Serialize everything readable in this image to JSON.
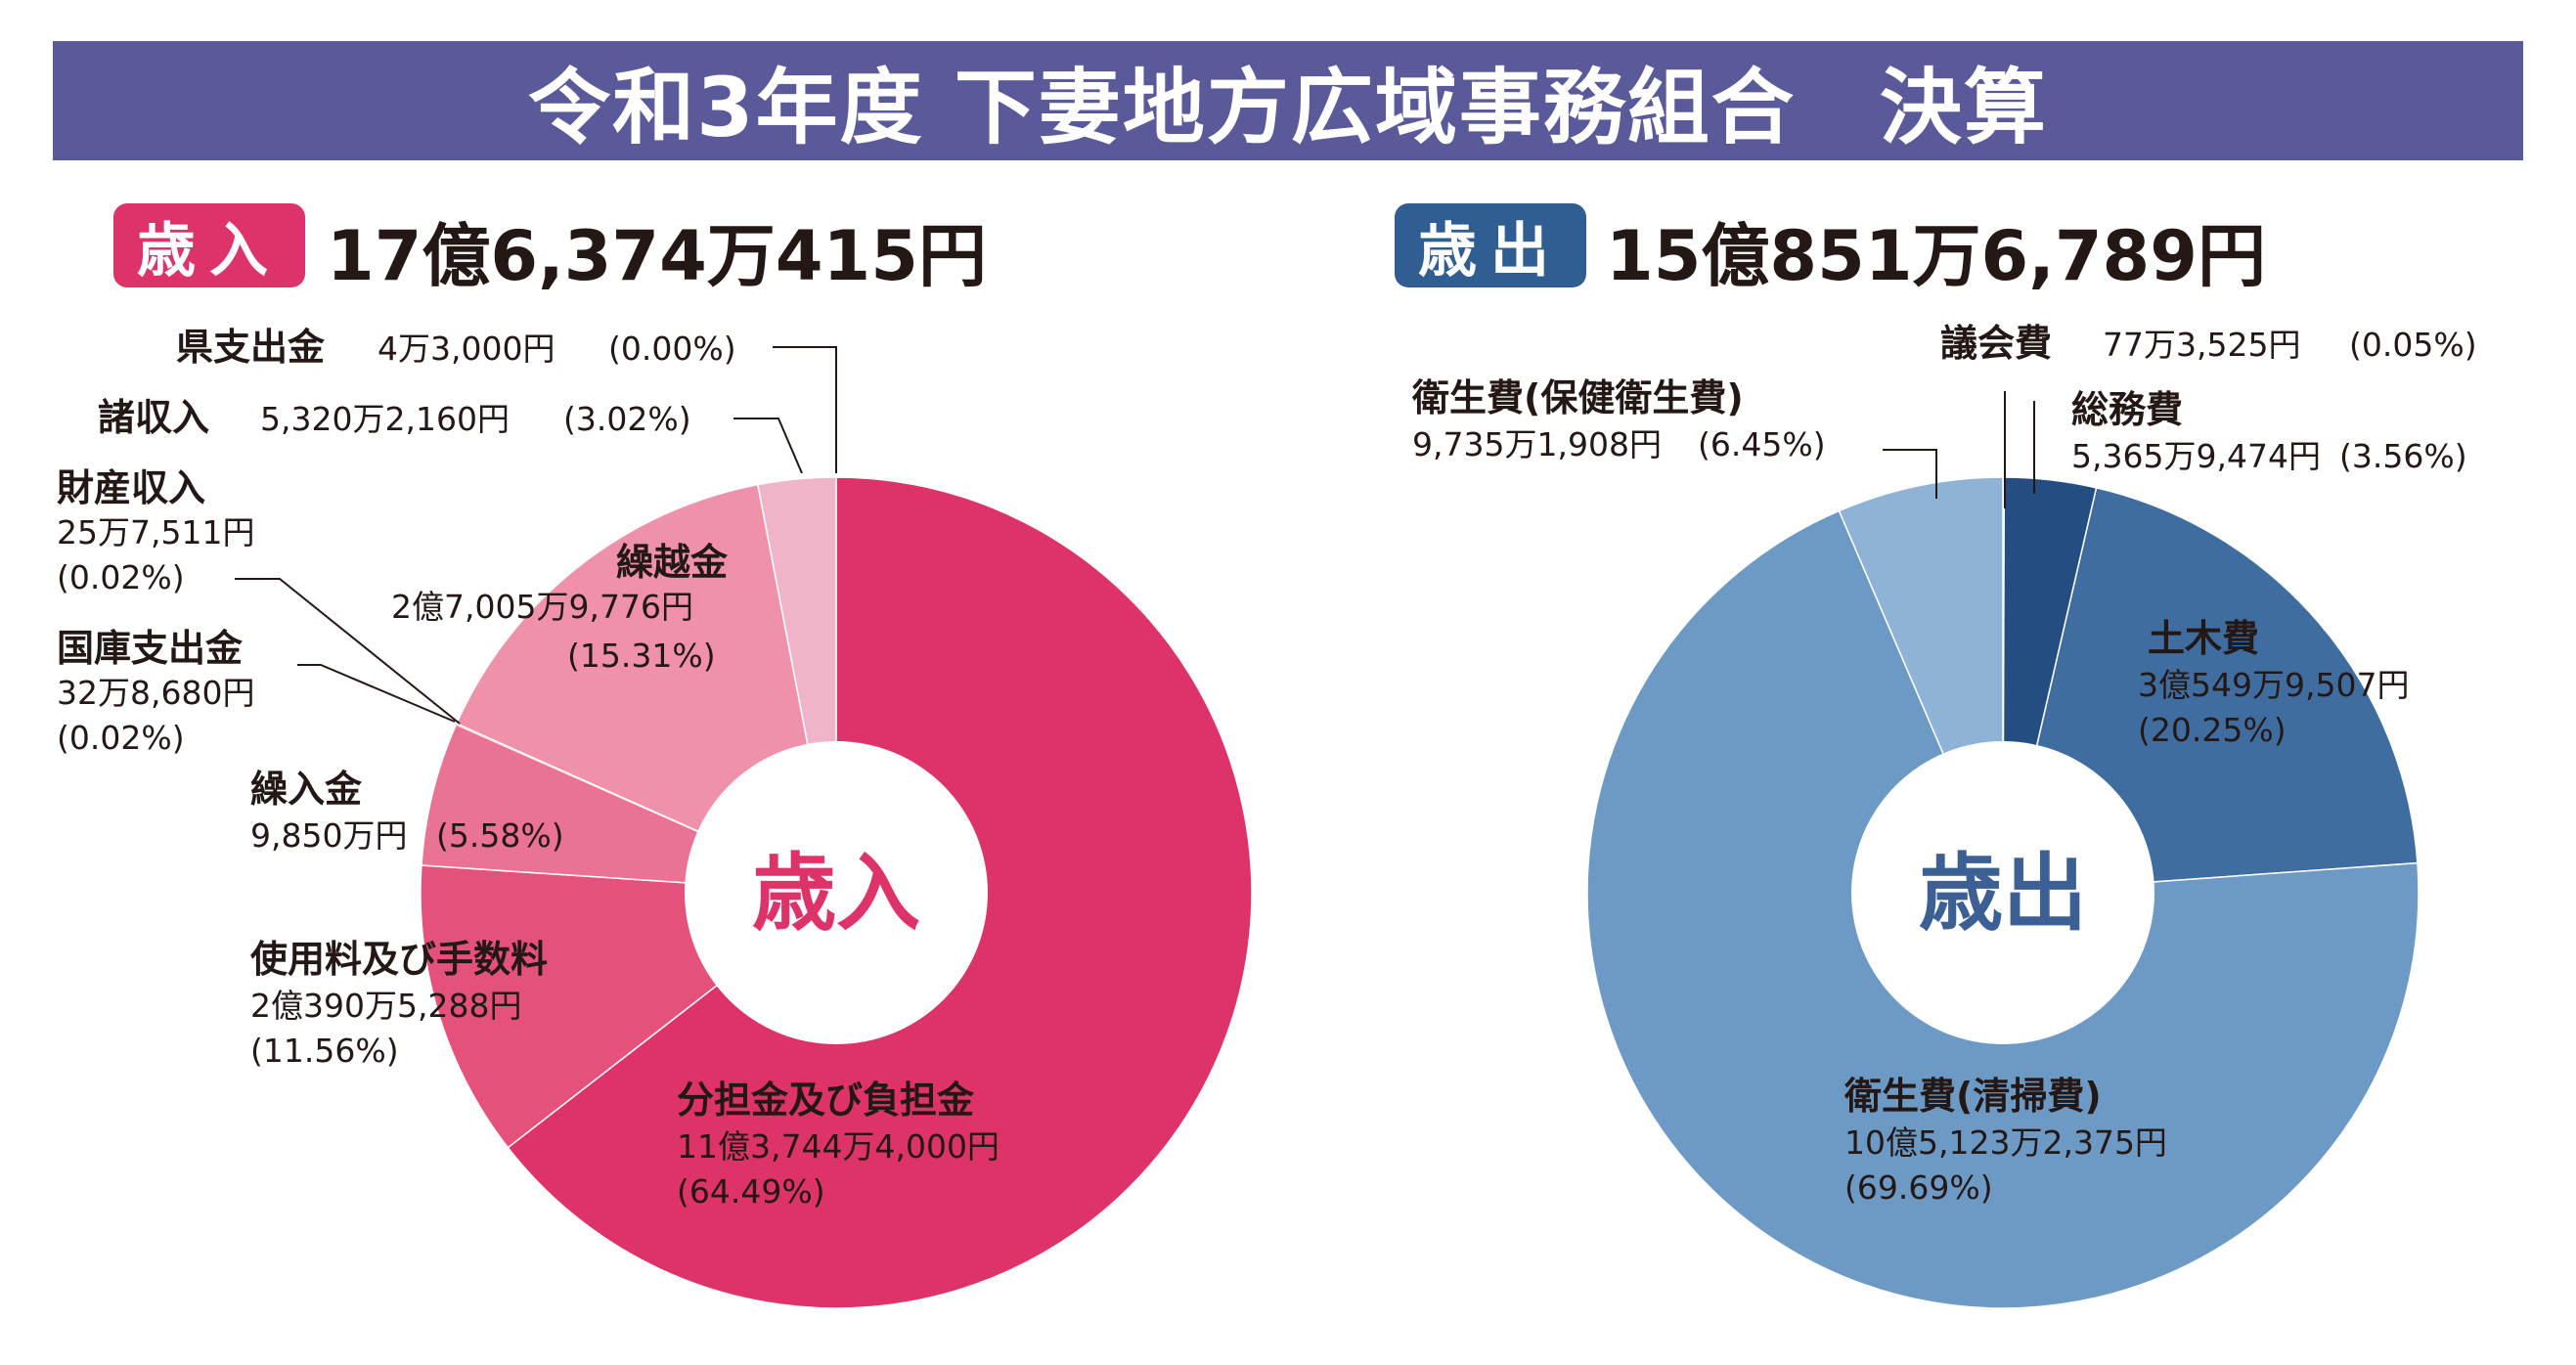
{
  "title": "令和3年度 下妻地方広域事務組合　決算",
  "colors": {
    "banner": "#5a5a9a",
    "revenue_accent": "#de3369",
    "expense_accent": "#2f5e92"
  },
  "chart_data": [
    {
      "type": "pie",
      "id": "revenue",
      "badge": "歳入",
      "total": "17億6,374万415円",
      "center_label": "歳入",
      "slices": [
        {
          "name": "分担金及び負担金",
          "amount": "11億3,744万4,000円",
          "percent_label": "(64.49%)",
          "value": 64.49,
          "color": "#de3369"
        },
        {
          "name": "使用料及び手数料",
          "amount": "2億390万5,288円",
          "percent_label": "(11.56%)",
          "value": 11.56,
          "color": "#e4527c"
        },
        {
          "name": "繰入金",
          "amount": "9,850万円",
          "percent_label": "(5.58%)",
          "value": 5.58,
          "color": "#e97295"
        },
        {
          "name": "国庫支出金",
          "amount": "32万8,680円",
          "percent_label": "(0.02%)",
          "value": 0.02,
          "color": "#ec87a4"
        },
        {
          "name": "財産収入",
          "amount": "25万7,511円",
          "percent_label": "(0.02%)",
          "value": 0.02,
          "color": "#ec87a4"
        },
        {
          "name": "繰越金",
          "amount": "2億7,005万9,776円",
          "percent_label": "(15.31%)",
          "value": 15.31,
          "color": "#ef91ab"
        },
        {
          "name": "諸収入",
          "amount": "5,320万2,160円",
          "percent_label": "(3.02%)",
          "value": 3.02,
          "color": "#f0b4c8"
        },
        {
          "name": "県支出金",
          "amount": "4万3,000円",
          "percent_label": "(0.00%)",
          "value": 0.0,
          "color": "#f4c6d4"
        }
      ]
    },
    {
      "type": "pie",
      "id": "expense",
      "badge": "歳出",
      "total": "15億851万6,789円",
      "center_label": "歳出",
      "slices": [
        {
          "name": "議会費",
          "amount": "77万3,525円",
          "percent_label": "(0.05%)",
          "value": 0.05,
          "color": "#1f4775"
        },
        {
          "name": "総務費",
          "amount": "5,365万9,474円",
          "percent_label": "(3.56%)",
          "value": 3.56,
          "color": "#244e82"
        },
        {
          "name": "土木費",
          "amount": "3億549万9,507円",
          "percent_label": "(20.25%)",
          "value": 20.25,
          "color": "#3f6d9f"
        },
        {
          "name": "衛生費(清掃費)",
          "amount": "10億5,123万2,375円",
          "percent_label": "(69.69%)",
          "value": 69.69,
          "color": "#6d9ac5"
        },
        {
          "name": "衛生費(保健衛生費)",
          "amount": "9,735万1,908円",
          "percent_label": "(6.45%)",
          "value": 6.45,
          "color": "#8fb3d6"
        }
      ]
    }
  ]
}
